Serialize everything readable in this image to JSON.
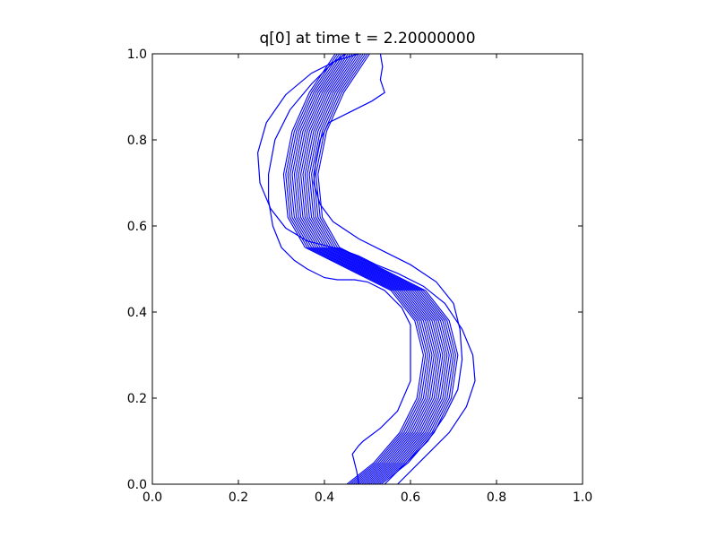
{
  "chart_data": {
    "type": "contour",
    "title": "q[0] at time t =     2.20000000",
    "xlabel": "",
    "ylabel": "",
    "xlim": [
      0.0,
      1.0
    ],
    "ylim": [
      0.0,
      1.0
    ],
    "xticks": [
      "0.0",
      "0.2",
      "0.4",
      "0.6",
      "0.8",
      "1.0"
    ],
    "yticks": [
      "0.0",
      "0.2",
      "0.4",
      "0.6",
      "0.8",
      "1.0"
    ],
    "grid": false,
    "line_color": "#0000ff",
    "centerline": [
      [
        0.497,
        0.0
      ],
      [
        0.56,
        0.05
      ],
      [
        0.62,
        0.12
      ],
      [
        0.66,
        0.2
      ],
      [
        0.675,
        0.3
      ],
      [
        0.655,
        0.38
      ],
      [
        0.6,
        0.45
      ],
      [
        0.5,
        0.5
      ],
      [
        0.4,
        0.55
      ],
      [
        0.36,
        0.62
      ],
      [
        0.35,
        0.72
      ],
      [
        0.37,
        0.82
      ],
      [
        0.41,
        0.91
      ],
      [
        0.47,
        1.0
      ]
    ],
    "band_offsets": [
      -0.045,
      -0.04,
      -0.035,
      -0.03,
      -0.025,
      -0.02,
      -0.015,
      -0.01,
      -0.005,
      0.0,
      0.005,
      0.01,
      0.015,
      0.02,
      0.025,
      0.03,
      0.035
    ],
    "outer_contours": [
      [
        [
          0.48,
          1.0
        ],
        [
          0.43,
          0.985
        ],
        [
          0.37,
          0.955
        ],
        [
          0.31,
          0.905
        ],
        [
          0.265,
          0.84
        ],
        [
          0.245,
          0.77
        ],
        [
          0.25,
          0.7
        ],
        [
          0.275,
          0.64
        ],
        [
          0.31,
          0.595
        ],
        [
          0.36,
          0.565
        ],
        [
          0.4,
          0.555
        ],
        [
          0.44,
          0.545
        ],
        [
          0.48,
          0.53
        ],
        [
          0.52,
          0.51
        ],
        [
          0.57,
          0.49
        ],
        [
          0.63,
          0.46
        ],
        [
          0.68,
          0.42
        ],
        [
          0.72,
          0.36
        ],
        [
          0.745,
          0.3
        ],
        [
          0.75,
          0.24
        ],
        [
          0.73,
          0.18
        ],
        [
          0.69,
          0.12
        ],
        [
          0.63,
          0.06
        ],
        [
          0.57,
          0.0
        ]
      ],
      [
        [
          0.53,
          1.0
        ],
        [
          0.535,
          0.97
        ],
        [
          0.53,
          0.94
        ],
        [
          0.54,
          0.91
        ],
        [
          0.51,
          0.89
        ],
        [
          0.46,
          0.865
        ],
        [
          0.41,
          0.84
        ],
        [
          0.39,
          0.8
        ],
        [
          0.38,
          0.75
        ],
        [
          0.375,
          0.7
        ],
        [
          0.39,
          0.65
        ],
        [
          0.42,
          0.61
        ],
        [
          0.48,
          0.57
        ],
        [
          0.54,
          0.54
        ],
        [
          0.6,
          0.51
        ],
        [
          0.66,
          0.47
        ],
        [
          0.7,
          0.42
        ],
        [
          0.715,
          0.36
        ],
        [
          0.72,
          0.29
        ],
        [
          0.71,
          0.22
        ],
        [
          0.68,
          0.16
        ],
        [
          0.64,
          0.1
        ],
        [
          0.59,
          0.05
        ],
        [
          0.54,
          0.0
        ]
      ],
      [
        [
          0.48,
          0.0
        ],
        [
          0.475,
          0.03
        ],
        [
          0.465,
          0.07
        ],
        [
          0.48,
          0.09
        ],
        [
          0.49,
          0.1
        ],
        [
          0.53,
          0.13
        ],
        [
          0.57,
          0.17
        ],
        [
          0.6,
          0.24
        ],
        [
          0.6,
          0.31
        ],
        [
          0.6,
          0.37
        ],
        [
          0.58,
          0.41
        ],
        [
          0.54,
          0.45
        ],
        [
          0.5,
          0.47
        ],
        [
          0.47,
          0.475
        ],
        [
          0.43,
          0.475
        ],
        [
          0.4,
          0.48
        ],
        [
          0.36,
          0.5
        ],
        [
          0.33,
          0.52
        ],
        [
          0.3,
          0.55
        ],
        [
          0.28,
          0.6
        ],
        [
          0.27,
          0.66
        ],
        [
          0.27,
          0.72
        ],
        [
          0.285,
          0.8
        ],
        [
          0.32,
          0.87
        ],
        [
          0.37,
          0.93
        ],
        [
          0.42,
          0.98
        ],
        [
          0.45,
          1.0
        ]
      ]
    ]
  }
}
